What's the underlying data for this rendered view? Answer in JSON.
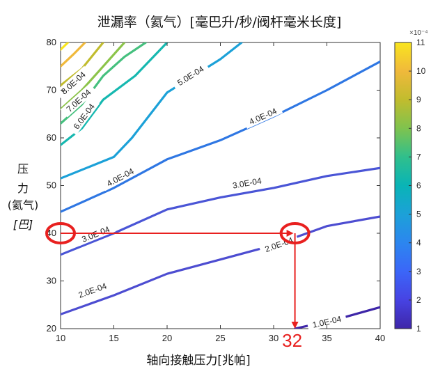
{
  "chart_data": {
    "type": "contour",
    "title": "泄漏率（氦气）[毫巴升/秒/阀杆毫米长度]",
    "xlabel": "轴向接触压力[兆帕]",
    "ylabel_lines": [
      "压",
      "力",
      "(氦气)",
      "[巴]"
    ],
    "xlim": [
      10,
      40
    ],
    "ylim": [
      20,
      80
    ],
    "x_ticks": [
      "10",
      "15",
      "20",
      "25",
      "30",
      "35",
      "40"
    ],
    "y_ticks": [
      "20",
      "30",
      "40",
      "50",
      "60",
      "70",
      "80"
    ],
    "colorbar": {
      "range": [
        1,
        11
      ],
      "ticks": [
        "1",
        "2",
        "3",
        "4",
        "5",
        "6",
        "7",
        "8",
        "9",
        "10",
        "11"
      ],
      "exponent": "×10⁻⁴",
      "colors": [
        "#3e26a8",
        "#4743e3",
        "#3b66f8",
        "#2c86ef",
        "#1ca1d8",
        "#09b4b6",
        "#30bf8c",
        "#7fc34e",
        "#c1bc2e",
        "#f0b93b",
        "#f9e51f"
      ]
    },
    "contours": [
      {
        "label": "1.0E-04",
        "level": 1.0,
        "color": "#3e26a8",
        "points": [
          [
            32,
            20
          ],
          [
            36,
            22
          ],
          [
            40,
            24.5
          ]
        ],
        "label_at": [
          35,
          21.4
        ]
      },
      {
        "label": "2.0E-04",
        "level": 2.0,
        "color": "#4d4dd1",
        "points": [
          [
            10,
            23
          ],
          [
            15,
            27
          ],
          [
            20,
            31.5
          ],
          [
            25,
            34.5
          ],
          [
            30,
            37.5
          ],
          [
            35,
            41.5
          ],
          [
            40,
            43.5
          ]
        ],
        "label_at": [
          13,
          28
        ]
      },
      {
        "label": "2.0E-04",
        "level": 2.0,
        "color": "#4d4dd1",
        "points": [],
        "label_at": [
          30.5,
          37.6
        ]
      },
      {
        "label": "3.0E-04",
        "level": 3.0,
        "color": "#4a55d6",
        "points": [
          [
            10,
            35.5
          ],
          [
            15,
            40
          ],
          [
            20,
            45
          ],
          [
            25,
            47.5
          ],
          [
            30,
            49.5
          ],
          [
            35,
            52
          ],
          [
            40,
            53.7
          ]
        ],
        "label_at": [
          13.3,
          39.8
        ]
      },
      {
        "label": "3.0E-04",
        "level": 3.0,
        "color": "#4a55d6",
        "points": [],
        "label_at": [
          27.5,
          50.5
        ]
      },
      {
        "label": "4.0E-04",
        "level": 4.0,
        "color": "#2f77e3",
        "points": [
          [
            10,
            44.5
          ],
          [
            15,
            49.5
          ],
          [
            20,
            55.5
          ],
          [
            25,
            59.5
          ],
          [
            30,
            64.5
          ],
          [
            35,
            70
          ],
          [
            40,
            76
          ]
        ],
        "label_at": [
          15.6,
          51.7
        ]
      },
      {
        "label": "4.0E-04",
        "level": 4.0,
        "color": "#2f77e3",
        "points": [],
        "label_at": [
          29,
          64.5
        ]
      },
      {
        "label": "5.0E-04",
        "level": 5.0,
        "color": "#1ca1d8",
        "points": [
          [
            10,
            51.5
          ],
          [
            15,
            56
          ],
          [
            16.7,
            60
          ],
          [
            20,
            69.5
          ],
          [
            25,
            76.5
          ],
          [
            27,
            80
          ]
        ],
        "label_at": [
          22.2,
          73
        ]
      },
      {
        "label": "6.0E-04",
        "level": 6.0,
        "color": "#16b8b0",
        "points": [
          [
            10,
            58.5
          ],
          [
            12,
            62
          ],
          [
            14,
            68
          ],
          [
            17,
            73
          ],
          [
            20,
            80
          ]
        ],
        "label_at": [
          12.2,
          64.5
        ]
      },
      {
        "label": "7.0E-04",
        "level": 7.0,
        "color": "#45c07e",
        "points": [
          [
            10,
            63
          ],
          [
            12,
            67
          ],
          [
            14,
            73
          ],
          [
            16,
            77
          ],
          [
            18,
            80
          ]
        ],
        "label_at": [
          11.7,
          67.8
        ]
      },
      {
        "label": "8.0E-04",
        "level": 8.0,
        "color": "#8cc44a",
        "points": [
          [
            10,
            66
          ],
          [
            12,
            70
          ],
          [
            14,
            75
          ],
          [
            16,
            80
          ]
        ],
        "label_at": [
          11.2,
          71.5
        ]
      },
      {
        "label": "",
        "level": 9.0,
        "color": "#c1bc2e",
        "points": [
          [
            10,
            71
          ],
          [
            12,
            74.5
          ],
          [
            14,
            80
          ]
        ],
        "label_at": null
      },
      {
        "label": "",
        "level": 10.0,
        "color": "#f0b93b",
        "points": [
          [
            10,
            75
          ],
          [
            11.2,
            77.5
          ],
          [
            12.3,
            80
          ]
        ],
        "label_at": null
      },
      {
        "label": "",
        "level": 11.0,
        "color": "#f9e51f",
        "points": [
          [
            10,
            78.5
          ],
          [
            10.7,
            80
          ]
        ],
        "label_at": null
      }
    ],
    "annotations": {
      "color": "#e8201f",
      "horizontal_arrow": {
        "from": [
          10,
          40
        ],
        "to": [
          32,
          40
        ]
      },
      "vertical_arrow": {
        "from": [
          32,
          40
        ],
        "to": [
          32,
          20
        ]
      },
      "ellipses": [
        [
          10,
          40
        ],
        [
          32,
          40
        ]
      ],
      "callout": "32"
    }
  }
}
